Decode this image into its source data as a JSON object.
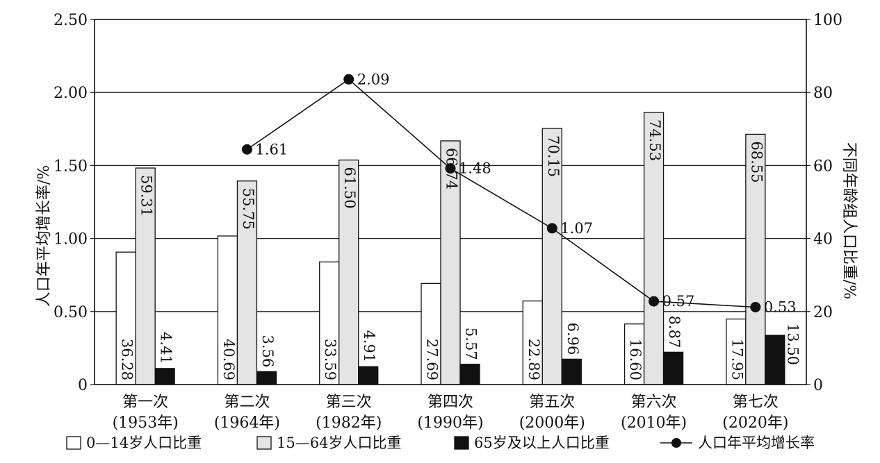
{
  "chart_data": {
    "type": "bar",
    "categories": [
      [
        "第一次",
        "(1953年)"
      ],
      [
        "第二次",
        "(1964年)"
      ],
      [
        "第三次",
        "(1982年)"
      ],
      [
        "第四次",
        "(1990年)"
      ],
      [
        "第五次",
        "(2000年)"
      ],
      [
        "第六次",
        "(2010年)"
      ],
      [
        "第七次",
        "(2020年)"
      ]
    ],
    "ylabel_left": "人口年平均增长率/%",
    "ylabel_right": "不同年龄组人口比重/%",
    "y_left_lim": [
      0,
      2.5
    ],
    "y_right_lim": [
      0,
      100
    ],
    "y_left_ticks": [
      "0",
      "0.50",
      "1.00",
      "1.50",
      "2.00",
      "2.50"
    ],
    "y_right_ticks": [
      "0",
      "20",
      "40",
      "60",
      "80",
      "100"
    ],
    "grid": true,
    "legend_position": "bottom",
    "bar_series": [
      {
        "name": "0—14岁人口比重",
        "axis": "right",
        "color": "#ffffff",
        "values": [
          36.28,
          40.69,
          33.59,
          27.69,
          22.89,
          16.6,
          17.95
        ],
        "labels": [
          "36.28",
          "40.69",
          "33.59",
          "27.69",
          "22.89",
          "16.60",
          "17.95"
        ]
      },
      {
        "name": "15—64岁人口比重",
        "axis": "right",
        "color": "#e4e4e4",
        "values": [
          59.31,
          55.75,
          61.5,
          66.74,
          70.15,
          74.53,
          68.55
        ],
        "labels": [
          "59.31",
          "55.75",
          "61.50",
          "66.74",
          "70.15",
          "74.53",
          "68.55"
        ]
      },
      {
        "name": "65岁及以上人口比重",
        "axis": "right",
        "color": "#111111",
        "values": [
          4.41,
          3.56,
          4.91,
          5.57,
          6.96,
          8.87,
          13.5
        ],
        "labels": [
          "4.41",
          "3.56",
          "4.91",
          "5.57",
          "6.96",
          "8.87",
          "13.50"
        ]
      }
    ],
    "line_series": {
      "name": "人口年平均增长率",
      "axis": "left",
      "color": "#111111",
      "category_index": [
        1,
        2,
        3,
        4,
        5,
        6
      ],
      "values": [
        1.61,
        2.09,
        1.48,
        1.07,
        0.57,
        0.53
      ],
      "labels": [
        "1.61",
        "2.09",
        "1.48",
        "1.07",
        "0.57",
        "0.53"
      ]
    }
  }
}
